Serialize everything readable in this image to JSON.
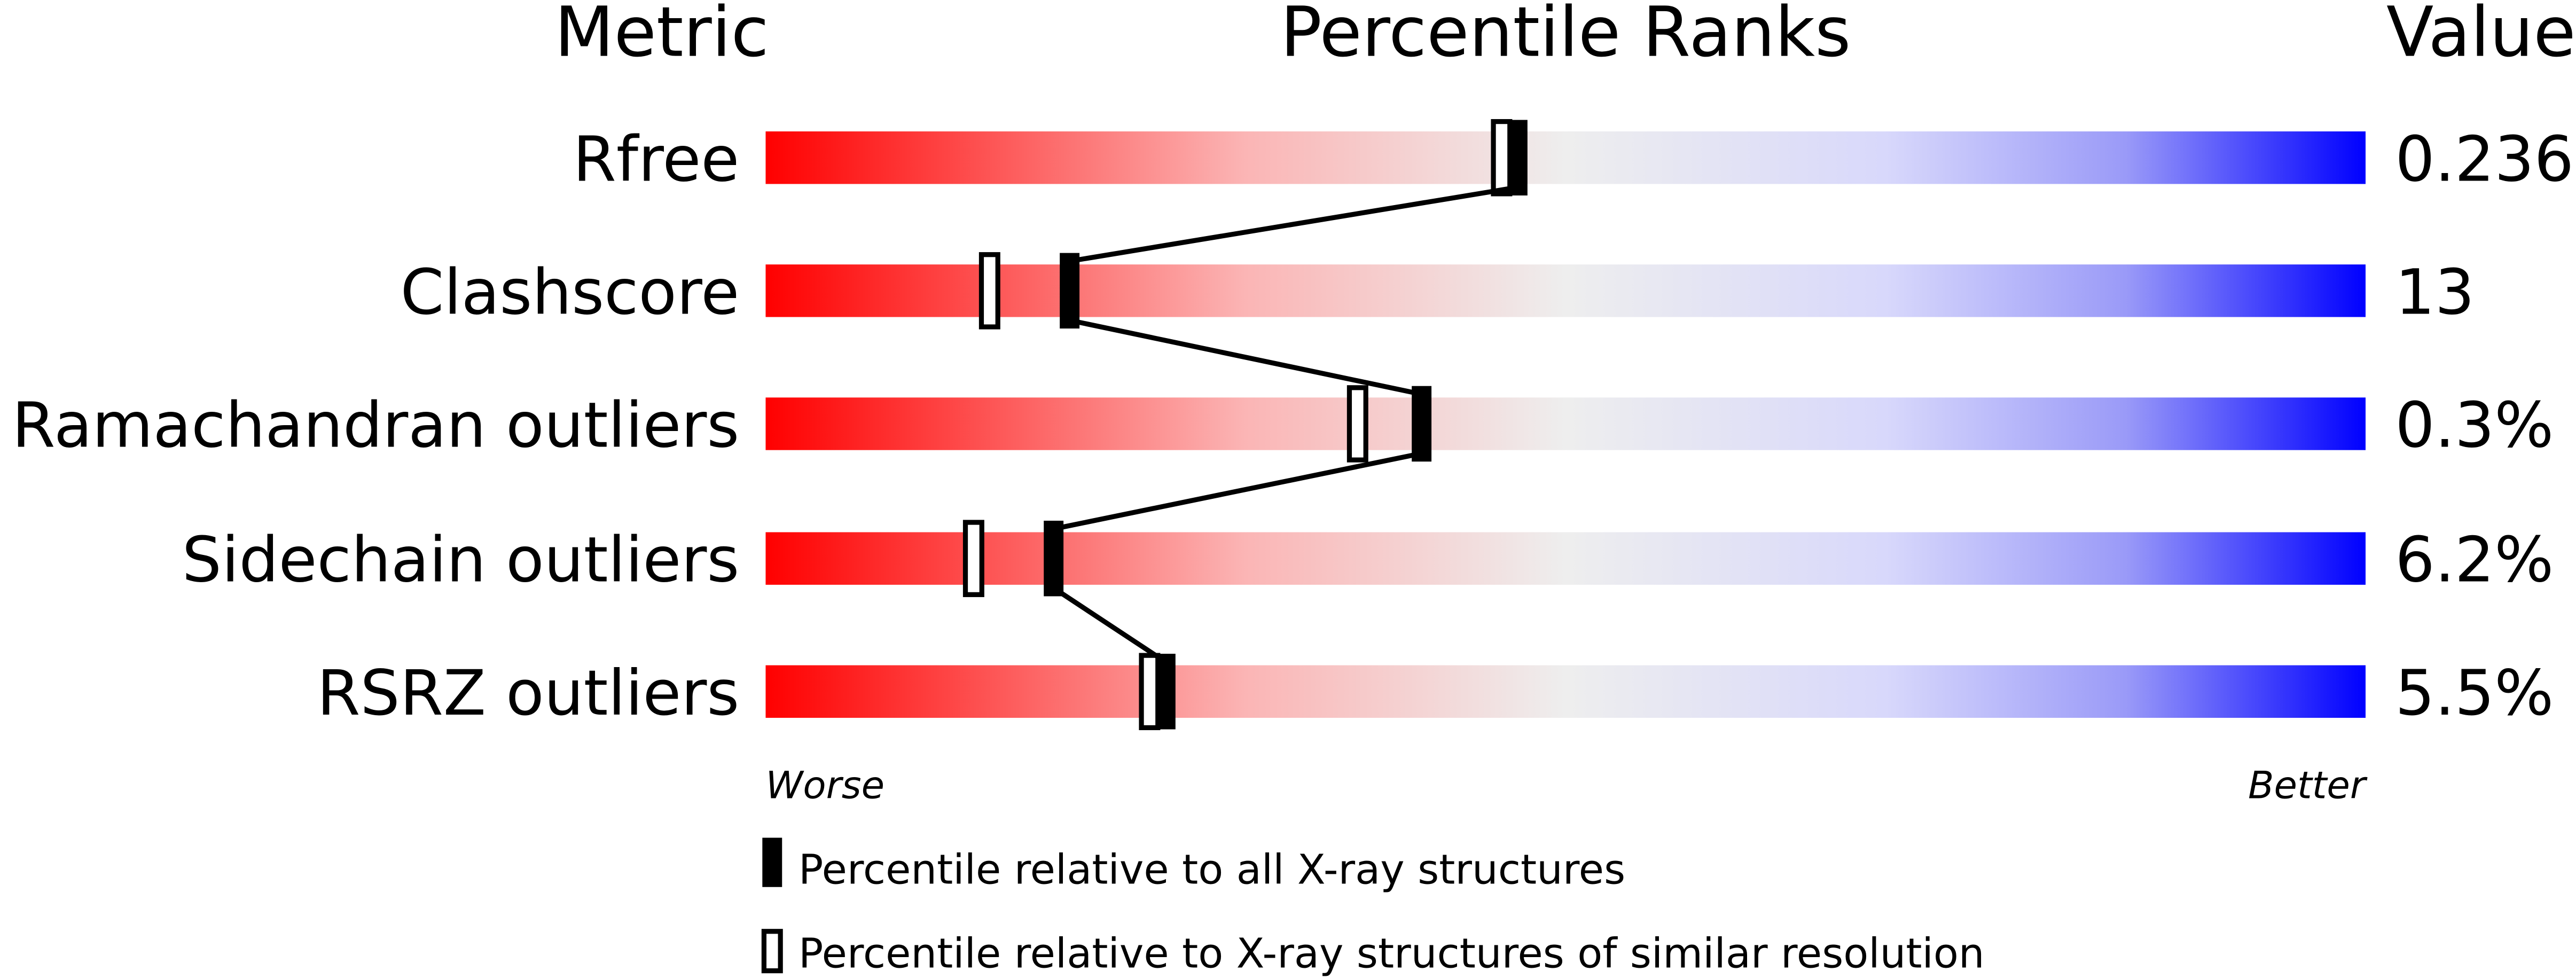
{
  "chart_data": {
    "type": "bar",
    "headers": {
      "metric": "Metric",
      "percentile": "Percentile Ranks",
      "value": "Value"
    },
    "xlim": [
      0,
      100
    ],
    "axis_labels": {
      "left": "Worse",
      "right": "Better"
    },
    "rows": [
      {
        "metric": "Rfree",
        "value": "0.236",
        "percentile_all": 47,
        "percentile_similar": 46
      },
      {
        "metric": "Clashscore",
        "value": "13",
        "percentile_all": 19,
        "percentile_similar": 14
      },
      {
        "metric": "Ramachandran outliers",
        "value": "0.3%",
        "percentile_all": 41,
        "percentile_similar": 37
      },
      {
        "metric": "Sidechain outliers",
        "value": "6.2%",
        "percentile_all": 18,
        "percentile_similar": 13
      },
      {
        "metric": "RSRZ outliers",
        "value": "5.5%",
        "percentile_all": 25,
        "percentile_similar": 24
      }
    ],
    "legend": [
      {
        "marker": "filled",
        "label": "Percentile relative to all X-ray structures"
      },
      {
        "marker": "open",
        "label": "Percentile relative to X-ray structures of similar resolution"
      }
    ],
    "colors": {
      "worse": "#ff0000",
      "middle": "#eeeeee",
      "better": "#0000ff",
      "marker": "#000000"
    }
  }
}
